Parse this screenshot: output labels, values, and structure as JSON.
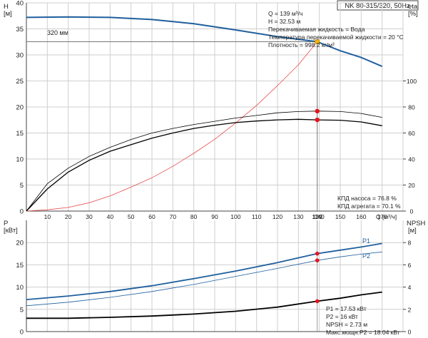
{
  "title": "NK 80-315/320, 50Hz",
  "chart_data": [
    {
      "type": "line",
      "name": "upper",
      "x_unit_label": "Q [м³/ч]",
      "xlim": [
        0,
        180
      ],
      "x_ticks": [
        0,
        10,
        20,
        30,
        40,
        50,
        60,
        70,
        80,
        90,
        100,
        110,
        120,
        130,
        140,
        150,
        160,
        170
      ],
      "left_axis": {
        "label_top": "H",
        "label_unit": "[м]",
        "ylim": [
          0,
          40
        ],
        "ticks": [
          0,
          5,
          10,
          15,
          20,
          25,
          30,
          35,
          40
        ]
      },
      "right_axis": {
        "label_top": "eta",
        "label_unit": "[%]",
        "ylim": [
          0,
          160
        ],
        "ticks": [
          0,
          20,
          40,
          60,
          80,
          100
        ]
      },
      "impeller_label": "320 мм",
      "duty_point": {
        "x": 139,
        "y": 32.53
      },
      "series": [
        {
          "key": "head",
          "color": "#1f5f9e",
          "axis": "left",
          "width": 2,
          "x": [
            0,
            20,
            40,
            60,
            80,
            100,
            120,
            139,
            150,
            160,
            170
          ],
          "y": [
            37.2,
            37.3,
            37.2,
            36.8,
            36.0,
            34.8,
            33.5,
            32.53,
            30.8,
            29.5,
            27.8
          ]
        },
        {
          "key": "system_curve",
          "color": "#e84a4a",
          "axis": "left",
          "width": 0.8,
          "x": [
            0,
            10,
            20,
            30,
            40,
            50,
            60,
            70,
            80,
            90,
            100,
            110,
            120,
            130,
            139
          ],
          "y": [
            0,
            0.25,
            0.7,
            1.6,
            2.9,
            4.6,
            6.4,
            8.6,
            11.1,
            13.8,
            16.9,
            20.3,
            24.1,
            28.1,
            32.53
          ]
        },
        {
          "key": "eta_unit",
          "color": "#000000",
          "axis": "right",
          "width": 1.3,
          "x": [
            0,
            10,
            20,
            30,
            40,
            50,
            60,
            70,
            80,
            90,
            100,
            110,
            120,
            130,
            139,
            150,
            160,
            170
          ],
          "y": [
            0,
            17,
            30,
            39,
            46,
            51,
            56,
            60,
            63.5,
            66,
            68,
            69.2,
            70.1,
            70.5,
            70.1,
            69.8,
            68.5,
            65.6
          ]
        },
        {
          "key": "eta_pump",
          "color": "#000000",
          "axis": "right",
          "width": 0.8,
          "x": [
            0,
            10,
            20,
            30,
            40,
            50,
            60,
            70,
            80,
            90,
            100,
            110,
            120,
            130,
            139,
            150,
            160,
            170
          ],
          "y": [
            0,
            21,
            33,
            42,
            49,
            55,
            60,
            63.5,
            66.5,
            69,
            71.5,
            73.5,
            75.5,
            76.5,
            76.8,
            76.5,
            75,
            72
          ]
        }
      ],
      "markers": [
        {
          "x": 139,
          "axis": "left",
          "y": 32.53,
          "color": "#f5b800"
        },
        {
          "x": 139,
          "axis": "right",
          "y": 76.8,
          "color": "#e8141b"
        },
        {
          "x": 139,
          "axis": "right",
          "y": 70.1,
          "color": "#e8141b"
        }
      ]
    },
    {
      "type": "line",
      "name": "lower",
      "xlim": [
        0,
        180
      ],
      "left_axis": {
        "label_top": "P",
        "label_unit": "[кВт]",
        "ylim": [
          0,
          25
        ],
        "ticks": [
          0,
          5,
          10,
          15,
          20
        ]
      },
      "right_axis": {
        "label_top": "NPSH",
        "label_unit": "[м]",
        "ylim": [
          0,
          10
        ],
        "ticks": [
          0,
          2,
          4,
          6,
          8
        ]
      },
      "series": [
        {
          "key": "P1",
          "label": "P1",
          "color": "#1f5f9e",
          "axis": "left",
          "width": 1.8,
          "x": [
            0,
            20,
            40,
            60,
            80,
            100,
            120,
            139,
            150,
            160,
            170
          ],
          "y": [
            7.2,
            8.0,
            9.0,
            10.3,
            11.9,
            13.6,
            15.5,
            17.53,
            18.3,
            19.0,
            19.8
          ]
        },
        {
          "key": "P2",
          "label": "P2",
          "color": "#1f5f9e",
          "axis": "left",
          "width": 0.8,
          "x": [
            0,
            20,
            40,
            60,
            80,
            100,
            120,
            139,
            150,
            160,
            170
          ],
          "y": [
            5.8,
            6.6,
            7.7,
            9.0,
            10.6,
            12.4,
            14.2,
            16.0,
            16.8,
            17.4,
            17.9
          ]
        },
        {
          "key": "NPSH",
          "color": "#000000",
          "axis": "right",
          "width": 1.8,
          "x": [
            0,
            20,
            40,
            60,
            80,
            100,
            120,
            139,
            150,
            160,
            170
          ],
          "y": [
            1.2,
            1.2,
            1.28,
            1.4,
            1.58,
            1.83,
            2.2,
            2.73,
            3.0,
            3.3,
            3.55
          ]
        }
      ],
      "markers": [
        {
          "x": 139,
          "axis": "left",
          "y": 17.53,
          "color": "#e8141b"
        },
        {
          "x": 139,
          "axis": "left",
          "y": 16.0,
          "color": "#e8141b"
        },
        {
          "x": 139,
          "axis": "right",
          "y": 2.73,
          "color": "#e8141b"
        }
      ]
    }
  ],
  "info_upper": [
    "Q = 139 м³/ч",
    "H = 32.53 м",
    "Перекачиваемая жидкость = Вода",
    "Температура перекачиваемой жидкости = 20 °C",
    "Плотность = 998.2 кг/м³"
  ],
  "eff_labels": [
    "КПД насоса = 76.8 %",
    "КПД агрегата = 70.1 %"
  ],
  "info_lower": [
    "P1 = 17.53 кВт",
    "P2 = 16 кВт",
    "NPSH = 2.73 м",
    "Макс.мощн.P2 = 18.04 кВт"
  ]
}
